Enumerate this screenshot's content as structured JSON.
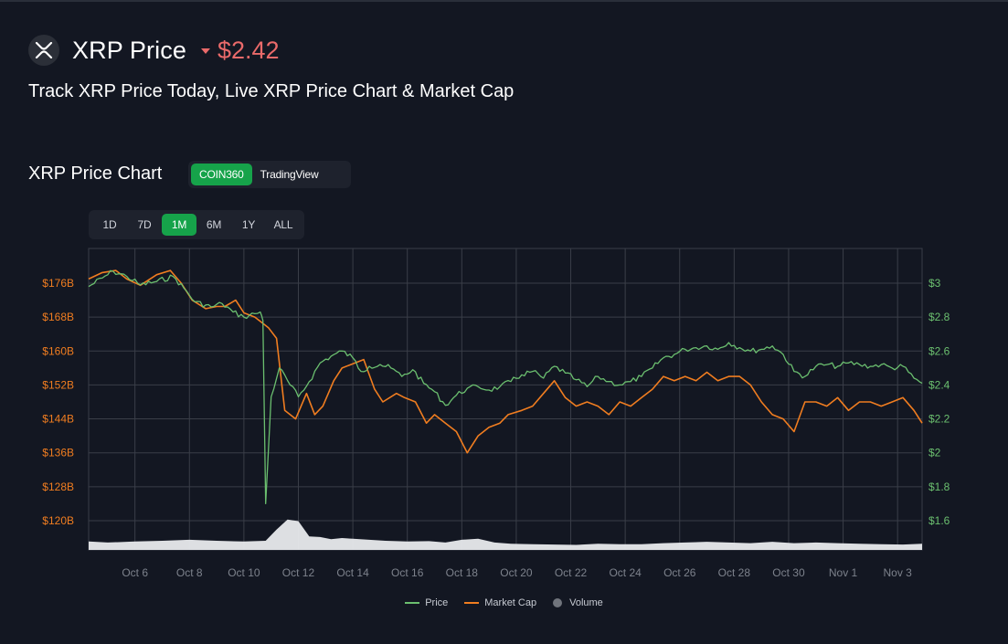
{
  "header": {
    "title": "XRP Price",
    "price": "$2.42",
    "subtitle": "Track XRP Price Today, Live XRP Price Chart & Market Cap"
  },
  "chart_section": {
    "title": "XRP Price Chart",
    "sources": [
      {
        "label": "COIN360",
        "active": true
      },
      {
        "label": "TradingView",
        "active": false
      }
    ],
    "ranges": [
      {
        "label": "1D",
        "active": false
      },
      {
        "label": "7D",
        "active": false
      },
      {
        "label": "1M",
        "active": true
      },
      {
        "label": "6M",
        "active": false
      },
      {
        "label": "1Y",
        "active": false
      },
      {
        "label": "ALL",
        "active": false
      }
    ]
  },
  "colors": {
    "background": "#131722",
    "price_line": "#6bbf6f",
    "market_cap_line": "#f07d20",
    "volume_area": "#e8eaed",
    "accent_green": "#16a34a",
    "down_red": "#ea6a6a",
    "grid": "#3a3e48"
  },
  "chart_data": {
    "type": "line",
    "x_ticks": [
      "Oct 6",
      "Oct 8",
      "Oct 10",
      "Oct 12",
      "Oct 14",
      "Oct 16",
      "Oct 18",
      "Oct 20",
      "Oct 22",
      "Oct 24",
      "Oct 26",
      "Oct 28",
      "Oct 30",
      "Nov 1",
      "Nov 3"
    ],
    "x_range": [
      4.3,
      34.9
    ],
    "left_axis": {
      "ticks": [
        "$176B",
        "$168B",
        "$160B",
        "$152B",
        "$144B",
        "$136B",
        "$128B",
        "$120B"
      ],
      "values": [
        176,
        168,
        160,
        152,
        144,
        136,
        128,
        120
      ],
      "unit": "B"
    },
    "right_axis": {
      "ticks": [
        "$3",
        "$2.8",
        "$2.6",
        "$2.4",
        "$2.2",
        "$2",
        "$1.8",
        "$1.6"
      ],
      "values": [
        3.0,
        2.8,
        2.6,
        2.4,
        2.2,
        2.0,
        1.8,
        1.6
      ]
    },
    "series": [
      {
        "name": "Price",
        "axis": "right",
        "x": [
          4.3,
          4.8,
          5.2,
          5.7,
          6.2,
          6.8,
          7.4,
          7.8,
          8.2,
          8.8,
          9.2,
          9.6,
          10.0,
          10.4,
          10.6,
          10.7,
          10.8,
          11.0,
          11.3,
          11.7,
          12.0,
          12.4,
          12.8,
          13.2,
          13.6,
          14.0,
          14.3,
          14.6,
          15.0,
          15.4,
          15.8,
          16.2,
          16.6,
          17.0,
          17.4,
          17.8,
          18.2,
          18.6,
          19.0,
          19.4,
          19.8,
          20.2,
          20.6,
          21.0,
          21.4,
          21.8,
          22.2,
          22.6,
          23.0,
          23.4,
          23.8,
          24.2,
          24.6,
          25.0,
          25.4,
          25.8,
          26.2,
          26.6,
          27.0,
          27.4,
          27.8,
          28.2,
          28.6,
          29.0,
          29.4,
          29.8,
          30.2,
          30.6,
          31.0,
          31.4,
          31.8,
          32.2,
          32.6,
          33.0,
          33.4,
          33.8,
          34.2,
          34.6,
          34.9
        ],
        "y": [
          2.98,
          3.03,
          3.07,
          3.04,
          2.99,
          3.01,
          3.04,
          2.97,
          2.89,
          2.86,
          2.88,
          2.83,
          2.8,
          2.82,
          2.83,
          2.78,
          1.7,
          2.33,
          2.5,
          2.4,
          2.33,
          2.42,
          2.53,
          2.57,
          2.6,
          2.56,
          2.48,
          2.51,
          2.52,
          2.5,
          2.45,
          2.49,
          2.41,
          2.36,
          2.28,
          2.34,
          2.38,
          2.39,
          2.37,
          2.39,
          2.42,
          2.46,
          2.48,
          2.44,
          2.51,
          2.47,
          2.43,
          2.39,
          2.45,
          2.42,
          2.4,
          2.42,
          2.45,
          2.5,
          2.56,
          2.58,
          2.61,
          2.62,
          2.63,
          2.61,
          2.65,
          2.62,
          2.6,
          2.61,
          2.63,
          2.58,
          2.48,
          2.45,
          2.51,
          2.52,
          2.51,
          2.53,
          2.52,
          2.51,
          2.52,
          2.5,
          2.51,
          2.44,
          2.41
        ]
      },
      {
        "name": "Market Cap",
        "axis": "left",
        "x": [
          4.3,
          4.8,
          5.3,
          5.7,
          6.2,
          6.8,
          7.3,
          7.7,
          8.1,
          8.6,
          9.0,
          9.3,
          9.7,
          10.0,
          10.4,
          10.6,
          10.9,
          11.2,
          11.5,
          11.9,
          12.3,
          12.6,
          12.9,
          13.3,
          13.6,
          14.0,
          14.4,
          14.8,
          15.1,
          15.6,
          15.9,
          16.3,
          16.7,
          17.0,
          17.4,
          17.8,
          18.2,
          18.6,
          19.0,
          19.4,
          19.7,
          20.2,
          20.6,
          21.0,
          21.4,
          21.8,
          22.2,
          22.6,
          23.0,
          23.4,
          23.8,
          24.2,
          24.6,
          25.0,
          25.4,
          25.8,
          26.2,
          26.6,
          27.0,
          27.4,
          27.8,
          28.2,
          28.6,
          29.0,
          29.4,
          29.8,
          30.2,
          30.6,
          31.0,
          31.4,
          31.8,
          32.2,
          32.6,
          33.0,
          33.4,
          33.8,
          34.2,
          34.6,
          34.9
        ],
        "y": [
          177,
          178.5,
          179,
          177,
          175.5,
          178,
          179,
          176,
          172,
          170,
          170.5,
          170.5,
          172,
          169,
          168,
          167,
          165.5,
          163,
          146,
          144,
          150,
          145,
          147,
          153,
          156,
          157,
          158,
          151,
          148,
          150,
          149,
          148,
          143,
          145,
          143,
          141,
          136,
          140,
          142,
          143,
          145,
          146,
          147,
          150,
          153,
          149,
          147,
          148,
          147,
          145,
          148,
          147,
          149,
          151,
          154,
          153,
          154,
          153,
          155,
          153,
          154,
          154,
          152,
          148,
          145,
          144,
          141,
          148,
          148,
          147,
          149,
          146,
          148,
          148,
          147,
          148,
          149,
          146,
          143
        ]
      },
      {
        "name": "Volume",
        "axis": "none",
        "x": [
          4.3,
          5.0,
          6.0,
          7.0,
          8.0,
          9.0,
          10.0,
          10.8,
          11.2,
          11.6,
          12.0,
          12.4,
          12.8,
          13.2,
          13.6,
          14.0,
          14.6,
          15.2,
          16.0,
          16.8,
          17.4,
          18.0,
          18.6,
          19.2,
          19.8,
          20.6,
          21.4,
          22.2,
          23.0,
          23.8,
          24.6,
          25.4,
          26.2,
          27.0,
          27.8,
          28.6,
          29.4,
          30.2,
          31.0,
          31.8,
          32.6,
          33.4,
          34.2,
          34.9
        ],
        "y": [
          0.25,
          0.22,
          0.25,
          0.27,
          0.3,
          0.27,
          0.25,
          0.27,
          0.6,
          0.9,
          0.85,
          0.4,
          0.38,
          0.32,
          0.35,
          0.33,
          0.3,
          0.27,
          0.25,
          0.26,
          0.22,
          0.3,
          0.33,
          0.22,
          0.18,
          0.17,
          0.16,
          0.15,
          0.18,
          0.17,
          0.17,
          0.2,
          0.22,
          0.24,
          0.22,
          0.2,
          0.24,
          0.2,
          0.22,
          0.2,
          0.18,
          0.17,
          0.16,
          0.18
        ]
      }
    ],
    "legend": [
      "Price",
      "Market Cap",
      "Volume"
    ],
    "legend_position": "bottom-center",
    "grid": true
  }
}
